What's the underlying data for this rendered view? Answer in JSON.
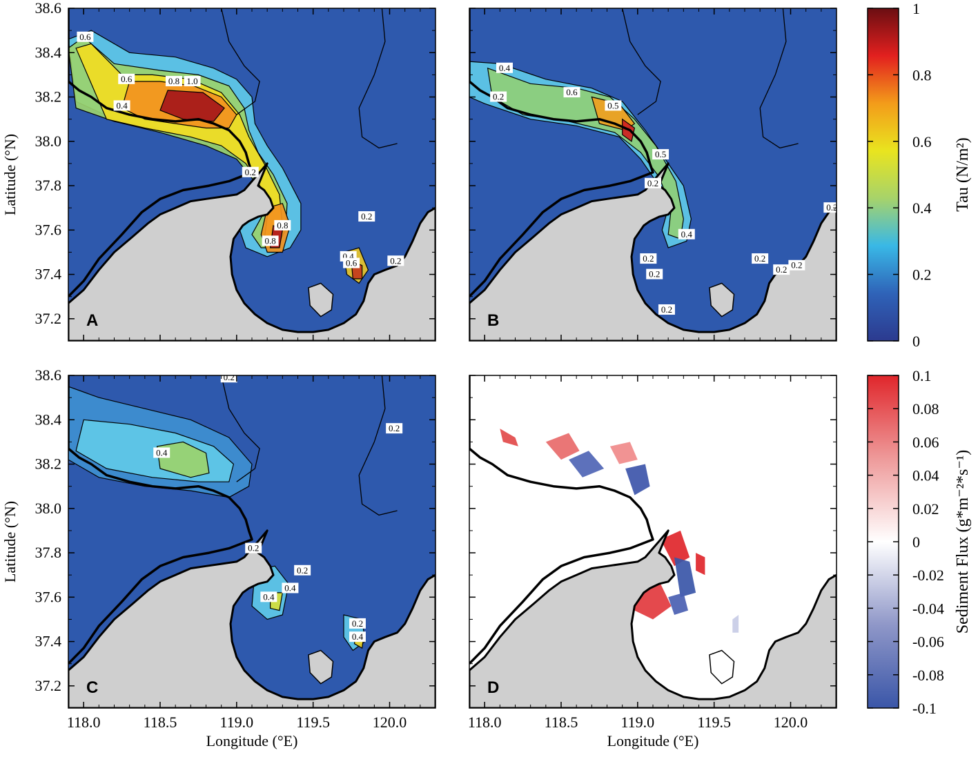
{
  "figure": {
    "axes": {
      "xlabel": "Longitude (°E)",
      "ylabel": "Latitude (°N)",
      "xlim": [
        117.9,
        120.3
      ],
      "ylim": [
        37.1,
        38.6
      ],
      "xticks": [
        {
          "value": 118.0,
          "label": "118.0"
        },
        {
          "value": 118.5,
          "label": "118.5"
        },
        {
          "value": 119.0,
          "label": "119.0"
        },
        {
          "value": 119.5,
          "label": "119.5"
        },
        {
          "value": 120.0,
          "label": "120.0"
        }
      ],
      "yticks": [
        {
          "value": 37.2,
          "label": "37.2"
        },
        {
          "value": 37.4,
          "label": "37.4"
        },
        {
          "value": 37.6,
          "label": "37.6"
        },
        {
          "value": 37.8,
          "label": "37.8"
        },
        {
          "value": 38.0,
          "label": "38.0"
        },
        {
          "value": 38.2,
          "label": "38.2"
        },
        {
          "value": 38.4,
          "label": "38.4"
        },
        {
          "value": 38.6,
          "label": "38.6"
        }
      ]
    },
    "panels": [
      {
        "id": "A",
        "letter": "A",
        "variable": "tau",
        "contour_labels": [
          {
            "text": "0.6",
            "lon": 118.01,
            "lat": 38.47
          },
          {
            "text": "0.6",
            "lon": 118.28,
            "lat": 38.28
          },
          {
            "text": "0.4",
            "lon": 118.25,
            "lat": 38.16
          },
          {
            "text": "0.8",
            "lon": 118.59,
            "lat": 38.27
          },
          {
            "text": "1.0",
            "lon": 118.71,
            "lat": 38.27
          },
          {
            "text": "0.2",
            "lon": 119.09,
            "lat": 37.86
          },
          {
            "text": "0.8",
            "lon": 119.3,
            "lat": 37.62
          },
          {
            "text": "0.8",
            "lon": 119.22,
            "lat": 37.55
          },
          {
            "text": "0.2",
            "lon": 119.85,
            "lat": 37.66
          },
          {
            "text": "0.4",
            "lon": 119.73,
            "lat": 37.48
          },
          {
            "text": "0.6",
            "lon": 119.75,
            "lat": 37.45
          },
          {
            "text": "0.2",
            "lon": 120.04,
            "lat": 37.46
          }
        ]
      },
      {
        "id": "B",
        "letter": "B",
        "variable": "tau",
        "contour_labels": [
          {
            "text": "0.4",
            "lon": 118.13,
            "lat": 38.33
          },
          {
            "text": "0.2",
            "lon": 118.09,
            "lat": 38.2
          },
          {
            "text": "0.6",
            "lon": 118.57,
            "lat": 38.22
          },
          {
            "text": "0.5",
            "lon": 118.84,
            "lat": 38.16
          },
          {
            "text": "0.5",
            "lon": 119.15,
            "lat": 37.94
          },
          {
            "text": "0.2",
            "lon": 119.1,
            "lat": 37.81
          },
          {
            "text": "0.4",
            "lon": 119.32,
            "lat": 37.58
          },
          {
            "text": "0.2",
            "lon": 119.07,
            "lat": 37.47
          },
          {
            "text": "0.2",
            "lon": 119.11,
            "lat": 37.4
          },
          {
            "text": "0.2",
            "lon": 119.19,
            "lat": 37.24
          },
          {
            "text": "0.2",
            "lon": 119.8,
            "lat": 37.47
          },
          {
            "text": "0.2",
            "lon": 119.94,
            "lat": 37.42
          },
          {
            "text": "0.2",
            "lon": 120.04,
            "lat": 37.44
          },
          {
            "text": "0.2",
            "lon": 120.27,
            "lat": 37.7
          }
        ]
      },
      {
        "id": "C",
        "letter": "C",
        "variable": "tau",
        "contour_labels": [
          {
            "text": "0.2",
            "lon": 118.95,
            "lat": 38.59
          },
          {
            "text": "0.2",
            "lon": 120.03,
            "lat": 38.36
          },
          {
            "text": "0.4",
            "lon": 118.51,
            "lat": 38.25
          },
          {
            "text": "0.2",
            "lon": 119.11,
            "lat": 37.82
          },
          {
            "text": "0.2",
            "lon": 119.43,
            "lat": 37.72
          },
          {
            "text": "0.4",
            "lon": 119.35,
            "lat": 37.64
          },
          {
            "text": "0.4",
            "lon": 119.21,
            "lat": 37.6
          },
          {
            "text": "0.2",
            "lon": 119.79,
            "lat": 37.48
          },
          {
            "text": "0.4",
            "lon": 119.79,
            "lat": 37.42
          }
        ]
      },
      {
        "id": "D",
        "letter": "D",
        "variable": "sediment_flux",
        "contour_labels": []
      }
    ],
    "colorbars": [
      {
        "id": "tau",
        "title": "Tau (N/m²)",
        "min": 0,
        "max": 1,
        "ticks": [
          {
            "value": 0,
            "label": "0"
          },
          {
            "value": 0.2,
            "label": "0.2"
          },
          {
            "value": 0.4,
            "label": "0.4"
          },
          {
            "value": 0.6,
            "label": "0.6"
          },
          {
            "value": 0.8,
            "label": "0.8"
          },
          {
            "value": 1,
            "label": "1"
          }
        ],
        "stops": [
          "#2c3a8f",
          "#2f63b8",
          "#39b8e6",
          "#a7d36a",
          "#e9e41f",
          "#f39c1a",
          "#e2201f",
          "#6b0e12"
        ]
      },
      {
        "id": "flux",
        "title": "Sediment Flux (g*m⁻²*s⁻¹)",
        "min": -0.1,
        "max": 0.1,
        "ticks": [
          {
            "value": -0.1,
            "label": "-0.1"
          },
          {
            "value": -0.08,
            "label": "-0.08"
          },
          {
            "value": -0.06,
            "label": "-0.06"
          },
          {
            "value": -0.04,
            "label": "-0.04"
          },
          {
            "value": -0.02,
            "label": "-0.02"
          },
          {
            "value": 0,
            "label": "0"
          },
          {
            "value": 0.02,
            "label": "0.02"
          },
          {
            "value": 0.04,
            "label": "0.04"
          },
          {
            "value": 0.06,
            "label": "0.06"
          },
          {
            "value": 0.08,
            "label": "0.08"
          },
          {
            "value": 0.1,
            "label": "0.1"
          }
        ],
        "stops": [
          "#3a56a8",
          "#8f97c8",
          "#ffffff",
          "#ee9a9a",
          "#e0262b"
        ]
      }
    ],
    "colors": {
      "land": "#cfcfcf",
      "tau_background": "#2e59ad",
      "flux_background": "#ffffff",
      "coastline": "#000000"
    }
  }
}
